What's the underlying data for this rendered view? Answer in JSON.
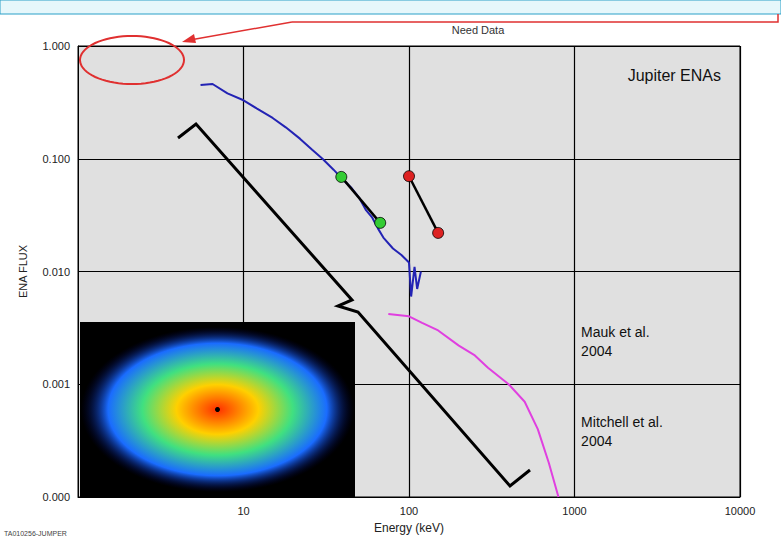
{
  "chart_data": {
    "type": "line",
    "title": "Jupiter ENAs",
    "x_label": "Energy (keV)",
    "y_label": "ENA FLUX",
    "log": true,
    "grid": true,
    "xlim": [
      1,
      10000
    ],
    "xticks": [
      10,
      100,
      1000,
      10000
    ],
    "ylim": [
      0.0001,
      1
    ],
    "yticks": [
      {
        "value": 0.0001,
        "label": "0.000"
      },
      {
        "value": 0.001,
        "label": "0.001"
      },
      {
        "value": 0.01,
        "label": "0.010"
      },
      {
        "value": 0.1,
        "label": "0.100"
      },
      {
        "value": 1,
        "label": "1.000"
      }
    ],
    "series": [
      {
        "type": "line",
        "color": "#2323b4",
        "line_style": "solid",
        "x": [
          5.5,
          6.5,
          8,
          10,
          12,
          15,
          18,
          22,
          26,
          30,
          35,
          40,
          45,
          50,
          55,
          60,
          65,
          70,
          80,
          90,
          100,
          103,
          108,
          112,
          118
        ],
        "values": [
          0.45,
          0.46,
          0.38,
          0.33,
          0.28,
          0.23,
          0.19,
          0.15,
          0.12,
          0.1,
          0.08,
          0.065,
          0.055,
          0.045,
          0.035,
          0.03,
          0.024,
          0.02,
          0.016,
          0.014,
          0.012,
          0.006,
          0.011,
          0.007,
          0.01
        ]
      },
      {
        "type": "line",
        "color": "#33cc33",
        "marker": "circle",
        "line_style": "solid",
        "x": [
          39,
          67
        ],
        "values": [
          0.069,
          0.027
        ]
      },
      {
        "type": "line",
        "color": "#dd2222",
        "marker": "circle",
        "line_style": "solid",
        "x": [
          100,
          150
        ],
        "values": [
          0.07,
          0.022
        ]
      },
      {
        "type": "line",
        "color": "#e040e0",
        "line_style": "solid",
        "x": [
          75,
          100,
          120,
          150,
          200,
          250,
          300,
          400,
          500,
          600,
          700,
          800
        ],
        "values": [
          0.0042,
          0.004,
          0.0035,
          0.003,
          0.0022,
          0.0018,
          0.0014,
          0.001,
          0.0007,
          0.0004,
          0.0002,
          0.0001
        ]
      }
    ],
    "annotations": [
      "Need Data",
      "Mauk et al. 2004",
      "Mitchell et al. 2004",
      "TA010256-JUMPER"
    ]
  }
}
